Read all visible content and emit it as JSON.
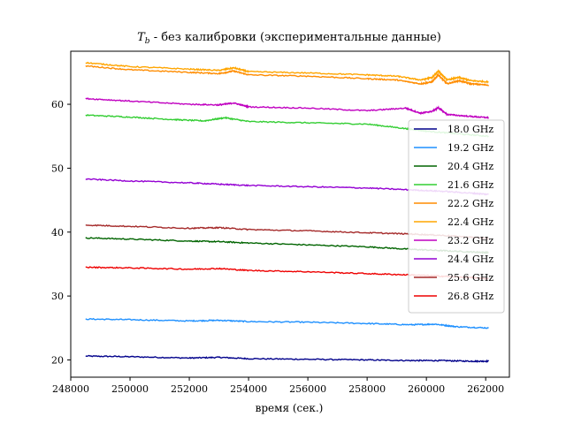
{
  "chart_data": {
    "type": "line",
    "title": "T_b - без калибровки (экспериментальные данные)",
    "title_main": "T",
    "title_sub": "b",
    "title_rest": " - без калибровки (экспериментальные данные)",
    "xlabel": "время (сек.)",
    "ylabel": "",
    "xlim": [
      248000,
      262800
    ],
    "ylim": [
      17.3,
      68.3
    ],
    "xticks": [
      248000,
      250000,
      252000,
      254000,
      256000,
      258000,
      260000,
      262000
    ],
    "yticks": [
      20,
      30,
      40,
      50,
      60
    ],
    "grid": false,
    "legend_position": "right",
    "series": [
      {
        "name": "18.0 GHz",
        "color": "#00008b",
        "x": [
          248500,
          250000,
          252000,
          253000,
          254000,
          256000,
          258000,
          259500,
          260500,
          261500,
          262100
        ],
        "y": [
          20.6,
          20.5,
          20.3,
          20.4,
          20.2,
          20.1,
          20.0,
          19.9,
          19.9,
          19.8,
          19.8
        ]
      },
      {
        "name": "19.2 GHz",
        "color": "#1e90ff",
        "x": [
          248500,
          250000,
          252000,
          253000,
          254000,
          256000,
          258000,
          259500,
          260300,
          261000,
          262100
        ],
        "y": [
          26.4,
          26.3,
          26.1,
          26.2,
          26.0,
          25.9,
          25.7,
          25.5,
          25.6,
          25.2,
          25.0
        ]
      },
      {
        "name": "20.4 GHz",
        "color": "#006400",
        "x": [
          248500,
          250000,
          252000,
          253000,
          254000,
          256000,
          258000,
          259500,
          260500,
          261500,
          262100
        ],
        "y": [
          39.1,
          38.9,
          38.6,
          38.5,
          38.3,
          38.0,
          37.7,
          37.3,
          37.1,
          36.9,
          36.8
        ]
      },
      {
        "name": "21.6 GHz",
        "color": "#32cd32",
        "x": [
          248500,
          250000,
          251500,
          252500,
          253200,
          254000,
          256000,
          258000,
          259300,
          260000,
          261000,
          262100
        ],
        "y": [
          58.3,
          58.0,
          57.6,
          57.4,
          57.9,
          57.3,
          57.1,
          56.9,
          56.2,
          55.8,
          55.4,
          55.0
        ]
      },
      {
        "name": "22.2 GHz",
        "color": "#ff8c00",
        "x": [
          248500,
          250000,
          252000,
          253000,
          253500,
          254000,
          256000,
          258000,
          259000,
          259800,
          260200,
          260400,
          260700,
          261100,
          261500,
          262100
        ],
        "y": [
          66.0,
          65.4,
          65.0,
          64.8,
          65.2,
          64.6,
          64.4,
          64.0,
          63.8,
          63.2,
          63.5,
          64.6,
          63.2,
          63.7,
          63.2,
          63.0
        ]
      },
      {
        "name": "22.4 GHz",
        "color": "#ffa500",
        "x": [
          248500,
          250000,
          252000,
          253000,
          253500,
          254000,
          256000,
          258000,
          259000,
          259800,
          260200,
          260400,
          260700,
          261100,
          261500,
          262100
        ],
        "y": [
          66.5,
          65.9,
          65.5,
          65.3,
          65.7,
          65.1,
          64.9,
          64.6,
          64.4,
          63.8,
          64.2,
          65.2,
          63.8,
          64.2,
          63.7,
          63.5
        ]
      },
      {
        "name": "23.2 GHz",
        "color": "#c000c0",
        "x": [
          248500,
          250000,
          252000,
          253000,
          253500,
          254000,
          256000,
          258000,
          259300,
          259800,
          260200,
          260400,
          260700,
          261500,
          262100
        ],
        "y": [
          60.9,
          60.5,
          60.0,
          59.9,
          60.2,
          59.6,
          59.4,
          59.0,
          59.4,
          58.6,
          58.9,
          59.5,
          58.4,
          58.1,
          57.9
        ]
      },
      {
        "name": "24.4 GHz",
        "color": "#9400d3",
        "x": [
          248500,
          250000,
          252000,
          253000,
          254000,
          256000,
          258000,
          259500,
          260500,
          261500,
          262100
        ],
        "y": [
          48.3,
          48.0,
          47.7,
          47.5,
          47.3,
          47.1,
          46.9,
          46.6,
          46.4,
          46.1,
          45.9
        ]
      },
      {
        "name": "25.6 GHz",
        "color": "#a52a2a",
        "x": [
          248500,
          250000,
          252000,
          253000,
          254000,
          256000,
          258000,
          259500,
          260500,
          261500,
          262100
        ],
        "y": [
          41.1,
          40.9,
          40.6,
          40.7,
          40.4,
          40.2,
          39.9,
          39.7,
          39.5,
          39.2,
          39.0
        ]
      },
      {
        "name": "26.8 GHz",
        "color": "#ee0000",
        "x": [
          248500,
          250000,
          252000,
          253000,
          254000,
          256000,
          258000,
          259500,
          260500,
          261500,
          262100
        ],
        "y": [
          34.5,
          34.4,
          34.2,
          34.3,
          34.0,
          33.8,
          33.5,
          33.3,
          33.1,
          32.9,
          32.7
        ]
      }
    ]
  }
}
